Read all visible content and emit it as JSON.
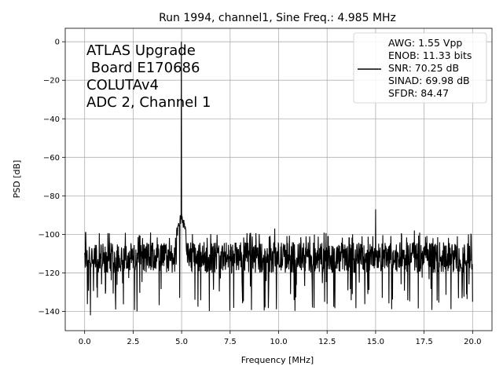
{
  "chart_data": {
    "type": "line",
    "title": "Run 1994, channel1, Sine Freq.: 4.985 MHz",
    "xlabel": "Frequency [MHz]",
    "ylabel": "PSD [dB]",
    "xlim": [
      -1.0,
      21.0
    ],
    "ylim": [
      -150,
      7
    ],
    "xticks": [
      0.0,
      2.5,
      5.0,
      7.5,
      10.0,
      12.5,
      15.0,
      17.5,
      20.0
    ],
    "xtick_labels": [
      "0.0",
      "2.5",
      "5.0",
      "7.5",
      "10.0",
      "12.5",
      "15.0",
      "17.5",
      "20.0"
    ],
    "yticks": [
      0,
      -20,
      -40,
      -60,
      -80,
      -100,
      -120,
      -140
    ],
    "ytick_labels": [
      "0",
      "−20",
      "−40",
      "−60",
      "−80",
      "−100",
      "−120",
      "−140"
    ],
    "grid": true,
    "line_color": "#000000",
    "annotation": [
      "ATLAS Upgrade",
      " Board E170686",
      "COLUTAv4",
      "ADC 2, Channel 1"
    ],
    "legend": {
      "placement": "top-right",
      "entries": [
        "AWG: 1.55 Vpp",
        "ENOB: 11.33 bits",
        "SNR: 70.25 dB",
        "SINAD: 69.98 dB",
        "SFDR: 84.47"
      ]
    },
    "series": [
      {
        "noise_floor_db": -112,
        "noise_top_db": -99,
        "noise_bottom_db": -142,
        "peaks": [
          {
            "x": 4.985,
            "y": 0
          },
          {
            "x": 4.9,
            "y": -85
          },
          {
            "x": 15.0,
            "y": -87
          },
          {
            "x": 9.8,
            "y": -97
          },
          {
            "x": 17.0,
            "y": -98
          },
          {
            "x": 0.05,
            "y": -99
          }
        ],
        "dips": [
          {
            "x": 0.3,
            "y": -142
          },
          {
            "x": 1.6,
            "y": -139
          },
          {
            "x": 2.7,
            "y": -140
          },
          {
            "x": 4.9,
            "y": -133
          },
          {
            "x": 13.8,
            "y": -131
          },
          {
            "x": 14.6,
            "y": -131
          },
          {
            "x": 20.0,
            "y": -135
          }
        ]
      }
    ]
  }
}
